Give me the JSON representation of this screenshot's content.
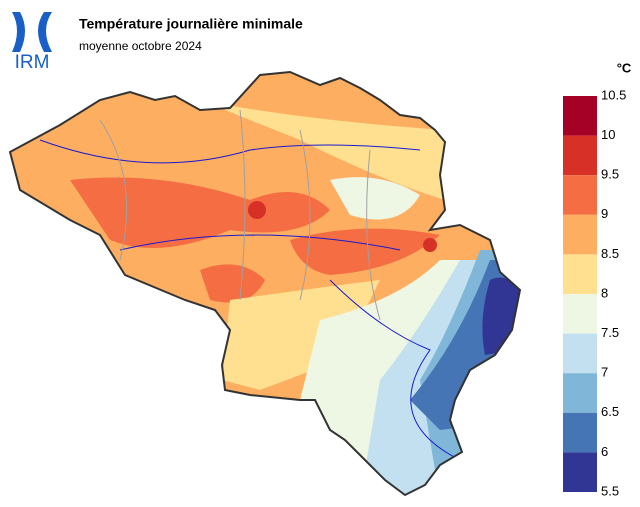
{
  "logo": {
    "text": "IRM"
  },
  "header": {
    "title": "Température journalière minimale",
    "subtitle": "moyenne octobre 2024"
  },
  "legend": {
    "unit": "°C",
    "ticks": [
      10.5,
      10,
      9.5,
      9,
      8.5,
      8,
      7.5,
      7,
      6.5,
      6,
      5.5
    ],
    "colors": [
      "#a50026",
      "#d73027",
      "#f46d43",
      "#fdae61",
      "#fee090",
      "#eef6e4",
      "#c2e0ef",
      "#80b6d8",
      "#4575b4",
      "#313695"
    ]
  }
}
